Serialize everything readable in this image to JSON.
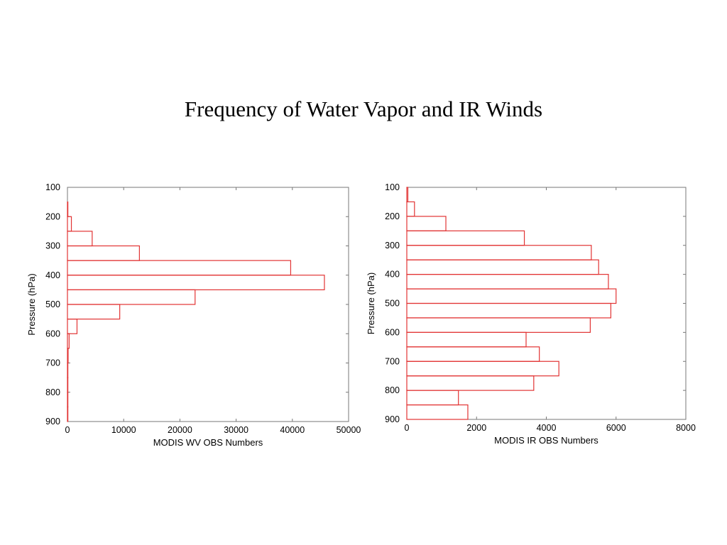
{
  "title": "Frequency of Water Vapor and IR Winds",
  "colors": {
    "bars": "#e23434",
    "axis": "#777777"
  },
  "chart_data": [
    {
      "type": "bar",
      "orientation": "horizontal",
      "xlabel": "MODIS WV OBS Numbers",
      "ylabel": "Pressure (hPa)",
      "xlim": [
        0,
        50000
      ],
      "ylim": [
        100,
        900
      ],
      "y_inverted": true,
      "xticks": [
        0,
        10000,
        20000,
        30000,
        40000,
        50000
      ],
      "yticks": [
        100,
        200,
        300,
        400,
        500,
        600,
        700,
        800,
        900
      ],
      "bin_width": 50,
      "bins": [
        {
          "from": 150,
          "to": 200,
          "value": 60
        },
        {
          "from": 200,
          "to": 250,
          "value": 700
        },
        {
          "from": 250,
          "to": 300,
          "value": 4400
        },
        {
          "from": 300,
          "to": 350,
          "value": 12800
        },
        {
          "from": 350,
          "to": 400,
          "value": 39700
        },
        {
          "from": 400,
          "to": 450,
          "value": 45700
        },
        {
          "from": 450,
          "to": 500,
          "value": 22700
        },
        {
          "from": 500,
          "to": 550,
          "value": 9300
        },
        {
          "from": 550,
          "to": 600,
          "value": 1700
        },
        {
          "from": 600,
          "to": 650,
          "value": 300
        },
        {
          "from": 650,
          "to": 700,
          "value": 120
        },
        {
          "from": 700,
          "to": 750,
          "value": 60
        },
        {
          "from": 750,
          "to": 800,
          "value": 30
        },
        {
          "from": 800,
          "to": 850,
          "value": 20
        },
        {
          "from": 850,
          "to": 900,
          "value": 60
        }
      ],
      "grid": false
    },
    {
      "type": "bar",
      "orientation": "horizontal",
      "xlabel": "MODIS IR OBS Numbers",
      "ylabel": "Pressure (hPa)",
      "xlim": [
        0,
        8000
      ],
      "ylim": [
        100,
        900
      ],
      "y_inverted": true,
      "xticks": [
        0,
        2000,
        4000,
        6000,
        8000
      ],
      "yticks": [
        100,
        200,
        300,
        400,
        500,
        600,
        700,
        800,
        900
      ],
      "bin_width": 50,
      "bins": [
        {
          "from": 100,
          "to": 150,
          "value": 30
        },
        {
          "from": 150,
          "to": 200,
          "value": 220
        },
        {
          "from": 200,
          "to": 250,
          "value": 1120
        },
        {
          "from": 250,
          "to": 300,
          "value": 3370
        },
        {
          "from": 300,
          "to": 350,
          "value": 5290
        },
        {
          "from": 350,
          "to": 400,
          "value": 5500
        },
        {
          "from": 400,
          "to": 450,
          "value": 5780
        },
        {
          "from": 450,
          "to": 500,
          "value": 6000
        },
        {
          "from": 500,
          "to": 550,
          "value": 5850
        },
        {
          "from": 550,
          "to": 600,
          "value": 5260
        },
        {
          "from": 600,
          "to": 650,
          "value": 3420
        },
        {
          "from": 650,
          "to": 700,
          "value": 3800
        },
        {
          "from": 700,
          "to": 750,
          "value": 4360
        },
        {
          "from": 750,
          "to": 800,
          "value": 3640
        },
        {
          "from": 800,
          "to": 850,
          "value": 1480
        },
        {
          "from": 850,
          "to": 900,
          "value": 1750
        }
      ],
      "grid": false
    }
  ]
}
